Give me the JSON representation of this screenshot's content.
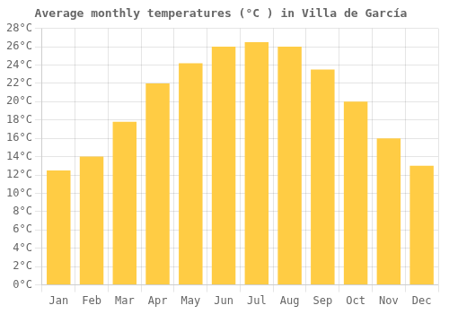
{
  "chart_data": {
    "type": "bar",
    "title": "Average monthly temperatures (°C ) in Villa de García",
    "categories": [
      "Jan",
      "Feb",
      "Mar",
      "Apr",
      "May",
      "Jun",
      "Jul",
      "Aug",
      "Sep",
      "Oct",
      "Nov",
      "Dec"
    ],
    "values": [
      12.5,
      14.0,
      17.8,
      22.0,
      24.2,
      26.0,
      26.5,
      26.0,
      23.5,
      20.0,
      16.0,
      13.0
    ],
    "color": "#FFCC44",
    "ylim": [
      0,
      28
    ],
    "yticks": [
      {
        "value": 0,
        "label": "0°C"
      },
      {
        "value": 2,
        "label": "2°C"
      },
      {
        "value": 4,
        "label": "4°C"
      },
      {
        "value": 6,
        "label": "6°C"
      },
      {
        "value": 8,
        "label": "8°C"
      },
      {
        "value": 10,
        "label": "10°C"
      },
      {
        "value": 12,
        "label": "12°C"
      },
      {
        "value": 14,
        "label": "14°C"
      },
      {
        "value": 16,
        "label": "16°C"
      },
      {
        "value": 18,
        "label": "18°C"
      },
      {
        "value": 20,
        "label": "20°C"
      },
      {
        "value": 22,
        "label": "22°C"
      },
      {
        "value": 24,
        "label": "24°C"
      },
      {
        "value": 26,
        "label": "26°C"
      },
      {
        "value": 28,
        "label": "28°C"
      }
    ],
    "grid": true
  }
}
